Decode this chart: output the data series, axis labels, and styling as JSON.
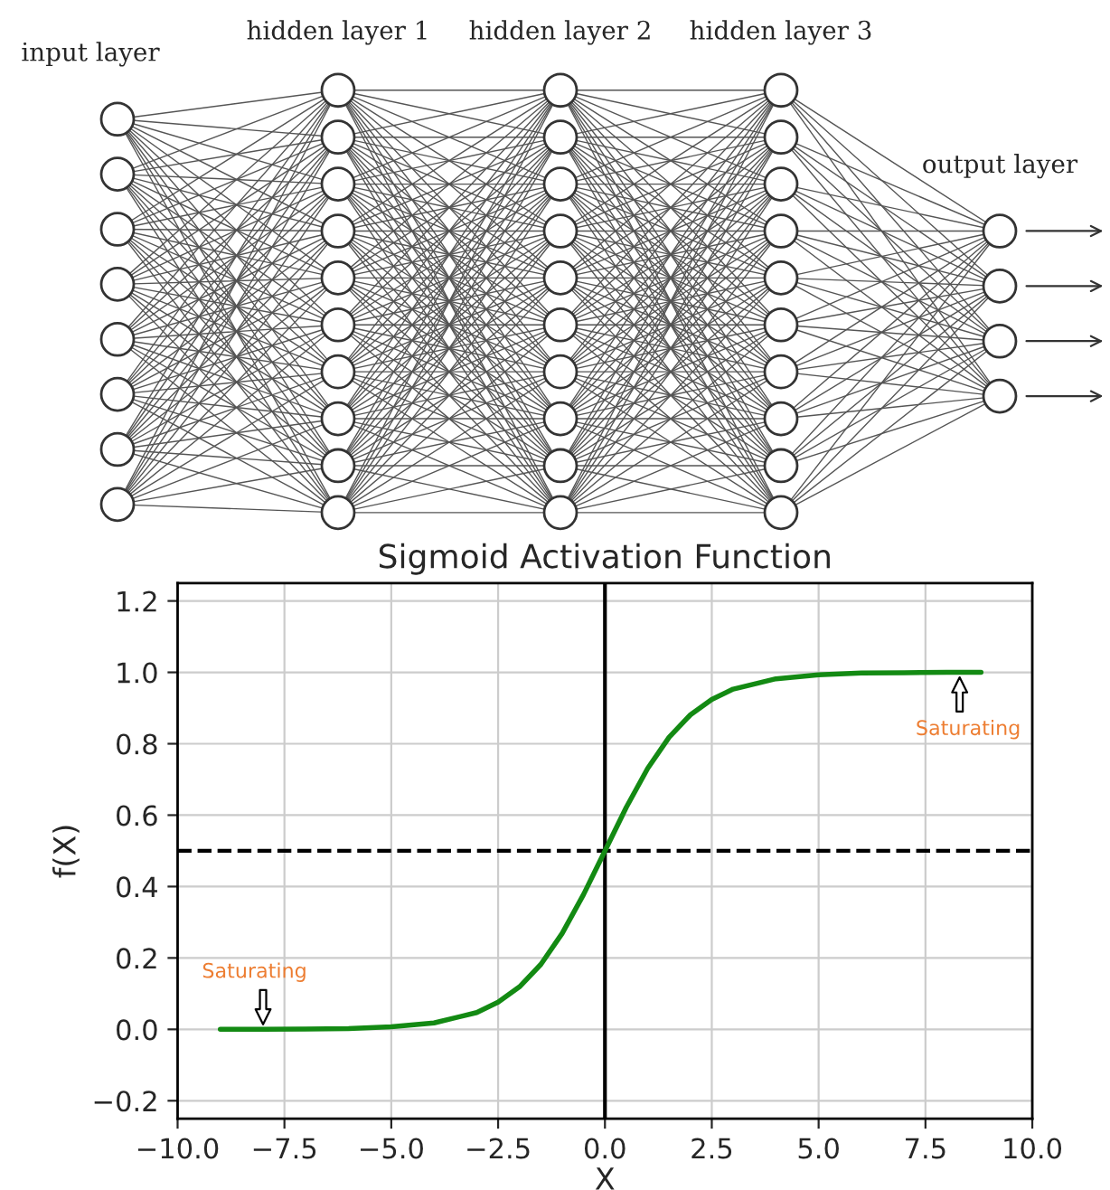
{
  "chart_data": [
    {
      "type": "other",
      "annotations": [
        "input layer",
        "hidden layer 1",
        "hidden layer 2",
        "hidden layer 3",
        "output layer"
      ]
    },
    {
      "type": "line",
      "title": "Sigmoid Activation Function",
      "xlabel": "X",
      "ylabel": "f(X)",
      "x": [
        -9,
        -8,
        -7,
        -6,
        -5,
        -4,
        -3,
        -2.5,
        -2,
        -1.5,
        -1,
        -0.5,
        0,
        0.5,
        1,
        1.5,
        2,
        2.5,
        3,
        4,
        5,
        6,
        7,
        8,
        8.8
      ],
      "series": [
        {
          "color": "#138a13",
          "values": [
            0.0,
            0.0,
            0.001,
            0.002,
            0.007,
            0.018,
            0.047,
            0.076,
            0.119,
            0.182,
            0.269,
            0.378,
            0.5,
            0.622,
            0.731,
            0.818,
            0.881,
            0.924,
            0.953,
            0.982,
            0.993,
            0.998,
            0.999,
            1.0,
            1.0
          ]
        }
      ],
      "xlim": [
        -10,
        10
      ],
      "xticks": [
        {
          "value": -10,
          "label": "−10.0"
        },
        {
          "value": -7.5,
          "label": "−7.5"
        },
        {
          "value": -5,
          "label": "−5.0"
        },
        {
          "value": -2.5,
          "label": "−2.5"
        },
        {
          "value": 0,
          "label": "0.0"
        },
        {
          "value": 2.5,
          "label": "2.5"
        },
        {
          "value": 5,
          "label": "5.0"
        },
        {
          "value": 7.5,
          "label": "7.5"
        },
        {
          "value": 10,
          "label": "10.0"
        }
      ],
      "ylim": [
        -0.25,
        1.25
      ],
      "yticks": [
        {
          "value": -0.2,
          "label": "−0.2"
        },
        {
          "value": 0,
          "label": "0.0"
        },
        {
          "value": 0.2,
          "label": "0.2"
        },
        {
          "value": 0.4,
          "label": "0.4"
        },
        {
          "value": 0.6,
          "label": "0.6"
        },
        {
          "value": 0.8,
          "label": "0.8"
        },
        {
          "value": 1,
          "label": "1.0"
        },
        {
          "value": 1.2,
          "label": "1.2"
        }
      ],
      "grid": true,
      "legend": false,
      "marker": "none",
      "line_style": "solid",
      "ref_lines": [
        {
          "axis": "y",
          "value": 0.5,
          "color": "#000000",
          "line_style": "dashed"
        },
        {
          "axis": "x",
          "value": 0,
          "color": "#000000",
          "line_style": "solid"
        }
      ],
      "annotations": [
        {
          "text": "Saturating",
          "x": -8,
          "y": 0.0
        },
        {
          "text": "Saturating",
          "x": 8.3,
          "y": 1.0
        }
      ]
    }
  ]
}
